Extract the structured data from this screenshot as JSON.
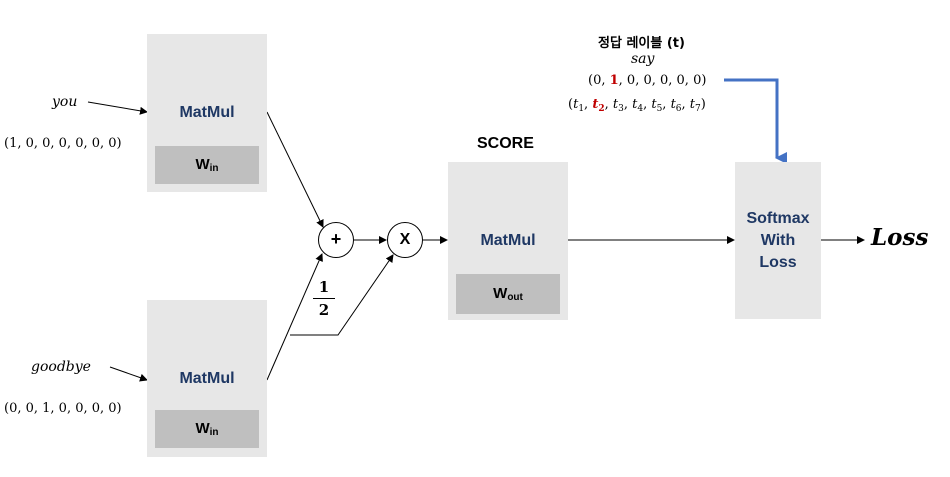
{
  "inputs": [
    {
      "word": "you",
      "vector": "(1, 0, 0, 0, 0, 0, 0)"
    },
    {
      "word": "goodbye",
      "vector": "(0, 0, 1, 0, 0, 0, 0)"
    }
  ],
  "matmul_label": "MatMul",
  "win": {
    "base": "W",
    "sub": "in"
  },
  "wout": {
    "base": "W",
    "sub": "out"
  },
  "plus_symbol": "+",
  "times_symbol": "X",
  "half": {
    "num": "1",
    "den": "2"
  },
  "score_label": "SCORE",
  "softmax": {
    "line1": "Softmax",
    "line2": "With",
    "line3": "Loss"
  },
  "loss_label": "Loss",
  "answer": {
    "title": "정답 레이블 (t)",
    "word": "say",
    "vec_open": "(0, ",
    "vec_hot": "1",
    "vec_close": ", 0, 0, 0, 0, 0)",
    "t_open": "(",
    "t_items": [
      "t1",
      "t2",
      "t3",
      "t4",
      "t5",
      "t6",
      "t7"
    ],
    "t_hot_index": 1,
    "t_close": ")"
  }
}
